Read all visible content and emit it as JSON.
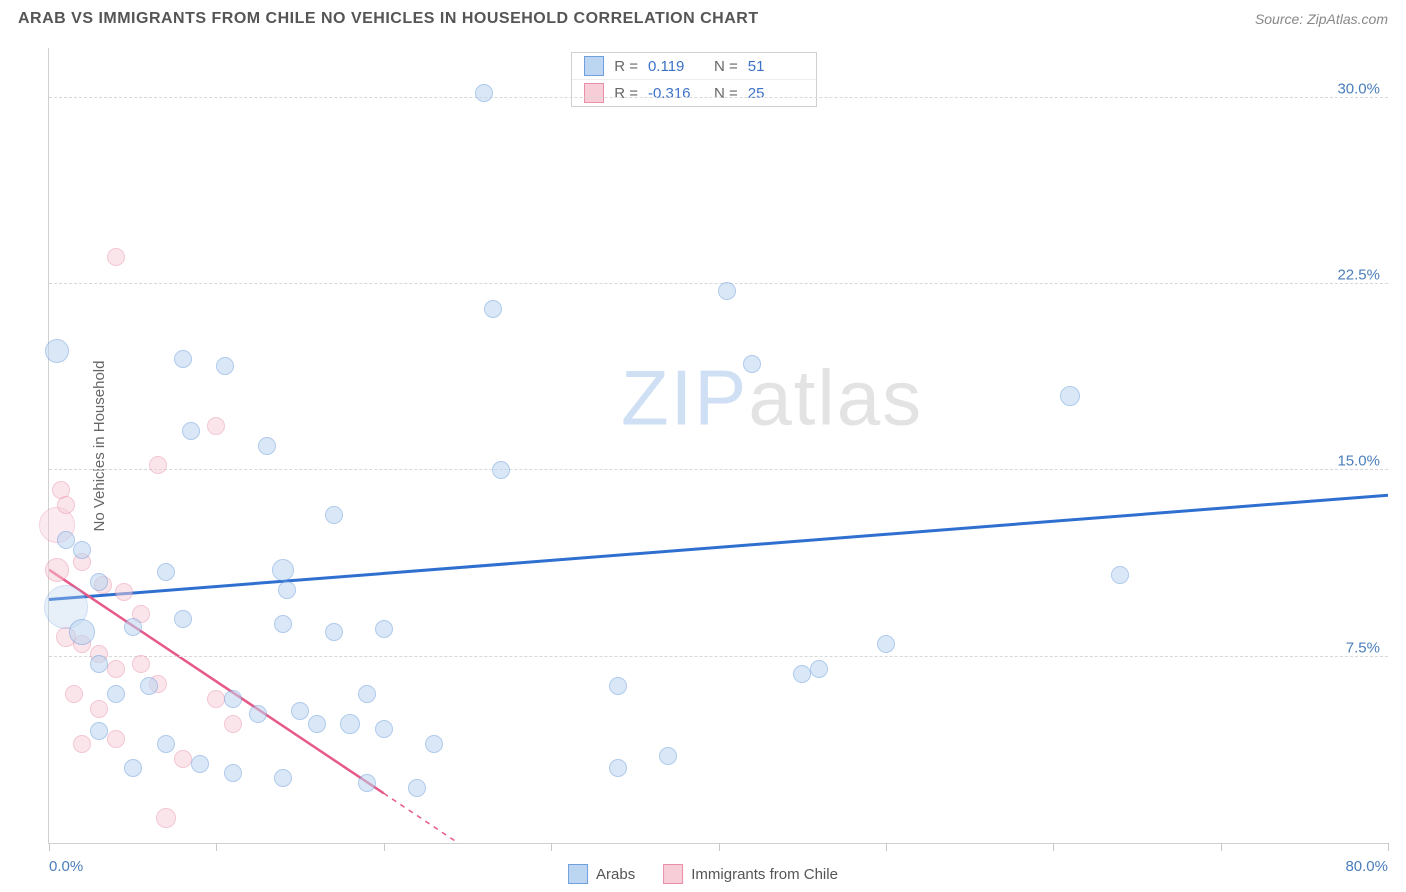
{
  "header": {
    "title": "ARAB VS IMMIGRANTS FROM CHILE NO VEHICLES IN HOUSEHOLD CORRELATION CHART",
    "source_prefix": "Source: ",
    "source_name": "ZipAtlas.com"
  },
  "watermark": {
    "zip": "ZIP",
    "atlas": "atlas",
    "zip_color": "#cfe0f5",
    "atlas_color": "#e3e3e3"
  },
  "chart": {
    "type": "scatter",
    "xlim": [
      0,
      80
    ],
    "ylim": [
      0,
      32
    ],
    "xlabel_start": "0.0%",
    "xlabel_end": "80.0%",
    "xtick_positions": [
      0,
      10,
      20,
      30,
      40,
      50,
      60,
      70,
      80
    ],
    "yticks": [
      {
        "v": 7.5,
        "label": "7.5%"
      },
      {
        "v": 15.0,
        "label": "15.0%"
      },
      {
        "v": 22.5,
        "label": "22.5%"
      },
      {
        "v": 30.0,
        "label": "30.0%"
      }
    ],
    "yaxis_title": "No Vehicles in Household",
    "grid_color": "#d8d8d8",
    "background_color": "#ffffff",
    "series": [
      {
        "name": "Arabs",
        "fill": "#bcd5f0",
        "stroke": "#6fa0dd",
        "trend": {
          "color": "#2f6fd0",
          "width": 3,
          "x1": 0,
          "y1": 9.8,
          "x2": 80,
          "y2": 14.0
        },
        "stats": {
          "R": "0.119",
          "N": "51"
        },
        "bubble_stroke_width": 1.2,
        "bubble_opacity": 0.55,
        "points": [
          {
            "x": 26,
            "y": 30.2,
            "r": 9
          },
          {
            "x": 0.5,
            "y": 19.8,
            "r": 12
          },
          {
            "x": 8,
            "y": 19.5,
            "r": 9
          },
          {
            "x": 10.5,
            "y": 19.2,
            "r": 9
          },
          {
            "x": 40.5,
            "y": 22.2,
            "r": 9
          },
          {
            "x": 42,
            "y": 19.3,
            "r": 9
          },
          {
            "x": 26.5,
            "y": 21.5,
            "r": 9
          },
          {
            "x": 61,
            "y": 18.0,
            "r": 10
          },
          {
            "x": 8.5,
            "y": 16.6,
            "r": 9
          },
          {
            "x": 13,
            "y": 16.0,
            "r": 9
          },
          {
            "x": 27,
            "y": 15.0,
            "r": 9
          },
          {
            "x": 17,
            "y": 13.2,
            "r": 9
          },
          {
            "x": 3,
            "y": 10.5,
            "r": 9
          },
          {
            "x": 7,
            "y": 10.9,
            "r": 9
          },
          {
            "x": 14,
            "y": 11.0,
            "r": 11
          },
          {
            "x": 14.2,
            "y": 10.2,
            "r": 9
          },
          {
            "x": 64,
            "y": 10.8,
            "r": 9
          },
          {
            "x": 1,
            "y": 9.5,
            "r": 22,
            "op": 0.35
          },
          {
            "x": 2,
            "y": 8.5,
            "r": 13
          },
          {
            "x": 5,
            "y": 8.7,
            "r": 9
          },
          {
            "x": 8,
            "y": 9.0,
            "r": 9
          },
          {
            "x": 14,
            "y": 8.8,
            "r": 9
          },
          {
            "x": 17,
            "y": 8.5,
            "r": 9
          },
          {
            "x": 20,
            "y": 8.6,
            "r": 9
          },
          {
            "x": 3,
            "y": 7.2,
            "r": 9
          },
          {
            "x": 50,
            "y": 8.0,
            "r": 9
          },
          {
            "x": 45,
            "y": 6.8,
            "r": 9
          },
          {
            "x": 34,
            "y": 6.3,
            "r": 9
          },
          {
            "x": 11,
            "y": 5.8,
            "r": 9
          },
          {
            "x": 12.5,
            "y": 5.2,
            "r": 9
          },
          {
            "x": 15,
            "y": 5.3,
            "r": 9
          },
          {
            "x": 16,
            "y": 4.8,
            "r": 9
          },
          {
            "x": 18,
            "y": 4.8,
            "r": 10
          },
          {
            "x": 20,
            "y": 4.6,
            "r": 9
          },
          {
            "x": 7,
            "y": 4.0,
            "r": 9
          },
          {
            "x": 37,
            "y": 3.5,
            "r": 9
          },
          {
            "x": 34,
            "y": 3.0,
            "r": 9
          },
          {
            "x": 11,
            "y": 2.8,
            "r": 9
          },
          {
            "x": 14,
            "y": 2.6,
            "r": 9
          },
          {
            "x": 19,
            "y": 2.4,
            "r": 9
          },
          {
            "x": 22,
            "y": 2.2,
            "r": 9
          },
          {
            "x": 9,
            "y": 3.2,
            "r": 9
          },
          {
            "x": 5,
            "y": 3.0,
            "r": 9
          },
          {
            "x": 4,
            "y": 6.0,
            "r": 9
          },
          {
            "x": 6,
            "y": 6.3,
            "r": 9
          },
          {
            "x": 3,
            "y": 4.5,
            "r": 9
          },
          {
            "x": 2,
            "y": 11.8,
            "r": 9
          },
          {
            "x": 1,
            "y": 12.2,
            "r": 9
          },
          {
            "x": 46,
            "y": 7.0,
            "r": 9
          },
          {
            "x": 23,
            "y": 4.0,
            "r": 9
          },
          {
            "x": 19,
            "y": 6.0,
            "r": 9
          }
        ]
      },
      {
        "name": "Immigrants from Chile",
        "fill": "#f7cdd8",
        "stroke": "#e98fa8",
        "trend": {
          "color": "#e75a87",
          "width": 2.5,
          "x1": 0,
          "y1": 11.0,
          "x2": 20,
          "y2": 2.0,
          "dash_after_x": 20,
          "dash_x2": 28,
          "dash_y2": -1.6
        },
        "stats": {
          "R": "-0.316",
          "N": "25"
        },
        "bubble_stroke_width": 1.2,
        "bubble_opacity": 0.5,
        "points": [
          {
            "x": 4,
            "y": 23.6,
            "r": 9
          },
          {
            "x": 10,
            "y": 16.8,
            "r": 9
          },
          {
            "x": 6.5,
            "y": 15.2,
            "r": 9
          },
          {
            "x": 0.7,
            "y": 14.2,
            "r": 9
          },
          {
            "x": 0.5,
            "y": 12.8,
            "r": 18,
            "op": 0.4
          },
          {
            "x": 1,
            "y": 13.6,
            "r": 9
          },
          {
            "x": 0.5,
            "y": 11.0,
            "r": 12
          },
          {
            "x": 2,
            "y": 11.3,
            "r": 9
          },
          {
            "x": 3.2,
            "y": 10.4,
            "r": 9
          },
          {
            "x": 4.5,
            "y": 10.1,
            "r": 9
          },
          {
            "x": 5.5,
            "y": 9.2,
            "r": 9
          },
          {
            "x": 1,
            "y": 8.3,
            "r": 10
          },
          {
            "x": 2,
            "y": 8.0,
            "r": 9
          },
          {
            "x": 3,
            "y": 7.6,
            "r": 9
          },
          {
            "x": 4,
            "y": 7.0,
            "r": 9
          },
          {
            "x": 5.5,
            "y": 7.2,
            "r": 9
          },
          {
            "x": 6.5,
            "y": 6.4,
            "r": 9
          },
          {
            "x": 1.5,
            "y": 6.0,
            "r": 9
          },
          {
            "x": 3,
            "y": 5.4,
            "r": 9
          },
          {
            "x": 10,
            "y": 5.8,
            "r": 9
          },
          {
            "x": 11,
            "y": 4.8,
            "r": 9
          },
          {
            "x": 8,
            "y": 3.4,
            "r": 9
          },
          {
            "x": 4,
            "y": 4.2,
            "r": 9
          },
          {
            "x": 2,
            "y": 4.0,
            "r": 9
          },
          {
            "x": 7,
            "y": 1.0,
            "r": 10
          }
        ]
      }
    ]
  },
  "bottom_legend": {
    "items": [
      {
        "label": "Arabs",
        "fill": "#bcd5f0",
        "stroke": "#6fa0dd"
      },
      {
        "label": "Immigrants from Chile",
        "fill": "#f7cdd8",
        "stroke": "#e98fa8"
      }
    ]
  },
  "stats_labels": {
    "R": "R =",
    "N": "N ="
  }
}
